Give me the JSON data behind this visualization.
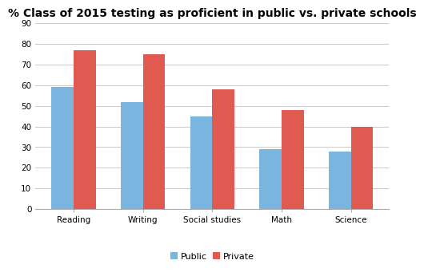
{
  "title": "% Class of 2015 testing as proficient in public vs. private schools",
  "categories": [
    "Reading",
    "Writing",
    "Social studies",
    "Math",
    "Science"
  ],
  "public_values": [
    59,
    52,
    45,
    29,
    28
  ],
  "private_values": [
    77,
    75,
    58,
    48,
    40
  ],
  "public_color": "#7ab5e0",
  "private_color": "#e05a52",
  "ylim": [
    0,
    90
  ],
  "yticks": [
    0,
    10,
    20,
    30,
    40,
    50,
    60,
    70,
    80,
    90
  ],
  "legend_labels": [
    "Public",
    "Private"
  ],
  "background_color": "#ffffff",
  "plot_bg_color": "#ffffff",
  "grid_color": "#cccccc",
  "title_fontsize": 10,
  "tick_fontsize": 7.5,
  "legend_fontsize": 8,
  "bar_width": 0.32
}
